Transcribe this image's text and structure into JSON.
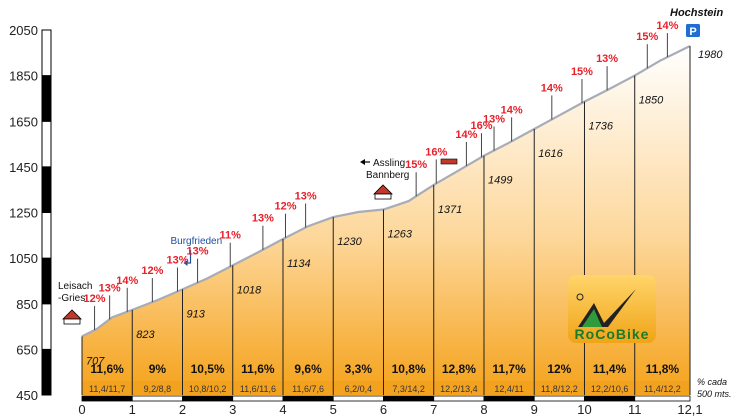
{
  "chart_data": {
    "type": "area",
    "summit_name": "Hochstein",
    "parking_label": "P",
    "start_label_line1": "Leisach",
    "start_label_line2": "-Gries",
    "xlim": [
      0,
      12.1
    ],
    "ylim": [
      450,
      2050
    ],
    "x_ticks": [
      {
        "v": 0,
        "label": "0"
      },
      {
        "v": 1,
        "label": "1"
      },
      {
        "v": 2,
        "label": "2"
      },
      {
        "v": 3,
        "label": "3"
      },
      {
        "v": 4,
        "label": "4"
      },
      {
        "v": 5,
        "label": "5"
      },
      {
        "v": 6,
        "label": "6"
      },
      {
        "v": 7,
        "label": "7"
      },
      {
        "v": 8,
        "label": "8"
      },
      {
        "v": 9,
        "label": "9"
      },
      {
        "v": 10,
        "label": "10"
      },
      {
        "v": 11,
        "label": "11"
      },
      {
        "v": 12.1,
        "label": "12,1"
      }
    ],
    "y_ticks": [
      {
        "v": 450,
        "label": "450"
      },
      {
        "v": 650,
        "label": "650"
      },
      {
        "v": 850,
        "label": "850"
      },
      {
        "v": 1050,
        "label": "1050"
      },
      {
        "v": 1250,
        "label": "1250"
      },
      {
        "v": 1450,
        "label": "1450"
      },
      {
        "v": 1650,
        "label": "1650"
      },
      {
        "v": 1850,
        "label": "1850"
      },
      {
        "v": 2050,
        "label": "2050"
      }
    ],
    "profile": [
      [
        0,
        707
      ],
      [
        0.3,
        740
      ],
      [
        0.6,
        790
      ],
      [
        1,
        823
      ],
      [
        1.5,
        866
      ],
      [
        2,
        913
      ],
      [
        2.5,
        962
      ],
      [
        3,
        1018
      ],
      [
        3.5,
        1075
      ],
      [
        4,
        1134
      ],
      [
        4.5,
        1190
      ],
      [
        5,
        1230
      ],
      [
        5.5,
        1252
      ],
      [
        6,
        1263
      ],
      [
        6.5,
        1300
      ],
      [
        7,
        1371
      ],
      [
        7.5,
        1435
      ],
      [
        8,
        1499
      ],
      [
        8.5,
        1556
      ],
      [
        9,
        1616
      ],
      [
        9.5,
        1676
      ],
      [
        10,
        1736
      ],
      [
        10.5,
        1792
      ],
      [
        11,
        1850
      ],
      [
        11.5,
        1915
      ],
      [
        12.1,
        1980
      ]
    ],
    "km_altitudes": [
      {
        "x": 0,
        "label": "707"
      },
      {
        "x": 1,
        "label": "823"
      },
      {
        "x": 2,
        "label": "913"
      },
      {
        "x": 3,
        "label": "1018"
      },
      {
        "x": 4,
        "label": "1134"
      },
      {
        "x": 5,
        "label": "1230"
      },
      {
        "x": 6,
        "label": "1263"
      },
      {
        "x": 7,
        "label": "1371"
      },
      {
        "x": 8,
        "label": "1499"
      },
      {
        "x": 9,
        "label": "1616"
      },
      {
        "x": 10,
        "label": "1736"
      },
      {
        "x": 11,
        "label": "1850"
      },
      {
        "x": 12.1,
        "label": "1980"
      }
    ],
    "segments": [
      {
        "avg": "11,6%",
        "detail": "11,4/11,7"
      },
      {
        "avg": "9%",
        "detail": "9,2/8,8"
      },
      {
        "avg": "10,5%",
        "detail": "10,8/10,2"
      },
      {
        "avg": "11,6%",
        "detail": "11,6/11,6"
      },
      {
        "avg": "9,6%",
        "detail": "11,6/7,6"
      },
      {
        "avg": "3,3%",
        "detail": "6,2/0,4"
      },
      {
        "avg": "10,8%",
        "detail": "7,3/14,2"
      },
      {
        "avg": "12,8%",
        "detail": "12,2/13,4"
      },
      {
        "avg": "11,7%",
        "detail": "12,4/11"
      },
      {
        "avg": "12%",
        "detail": "11,8/12,2"
      },
      {
        "avg": "11,4%",
        "detail": "12,2/10,6"
      },
      {
        "avg": "11,8%",
        "detail": "11,4/12,2"
      }
    ],
    "max_gradients": [
      {
        "x": 0.25,
        "label": "12%"
      },
      {
        "x": 0.55,
        "label": "13%"
      },
      {
        "x": 0.9,
        "label": "14%"
      },
      {
        "x": 1.4,
        "label": "12%"
      },
      {
        "x": 1.9,
        "label": "13%"
      },
      {
        "x": 2.3,
        "label": "13%"
      },
      {
        "x": 2.95,
        "label": "11%"
      },
      {
        "x": 3.6,
        "label": "13%"
      },
      {
        "x": 4.05,
        "label": "12%"
      },
      {
        "x": 4.45,
        "label": "13%"
      },
      {
        "x": 6.65,
        "label": "15%"
      },
      {
        "x": 7.05,
        "label": "16%"
      },
      {
        "x": 7.65,
        "label": "14%"
      },
      {
        "x": 7.95,
        "label": "16%"
      },
      {
        "x": 8.2,
        "label": "13%"
      },
      {
        "x": 8.55,
        "label": "14%"
      },
      {
        "x": 9.35,
        "label": "14%"
      },
      {
        "x": 9.95,
        "label": "15%"
      },
      {
        "x": 10.45,
        "label": "13%"
      },
      {
        "x": 11.25,
        "label": "15%"
      },
      {
        "x": 11.65,
        "label": "14%"
      }
    ],
    "places": [
      {
        "name": "Burgfrieden",
        "x": 2.0
      },
      {
        "name": "Assling",
        "x": 6.0
      },
      {
        "name": "Bannberg",
        "x": 6.0
      }
    ],
    "legend_line1": "% cada",
    "legend_line2": "500 mts.",
    "logo_text": "RoCoBike"
  }
}
